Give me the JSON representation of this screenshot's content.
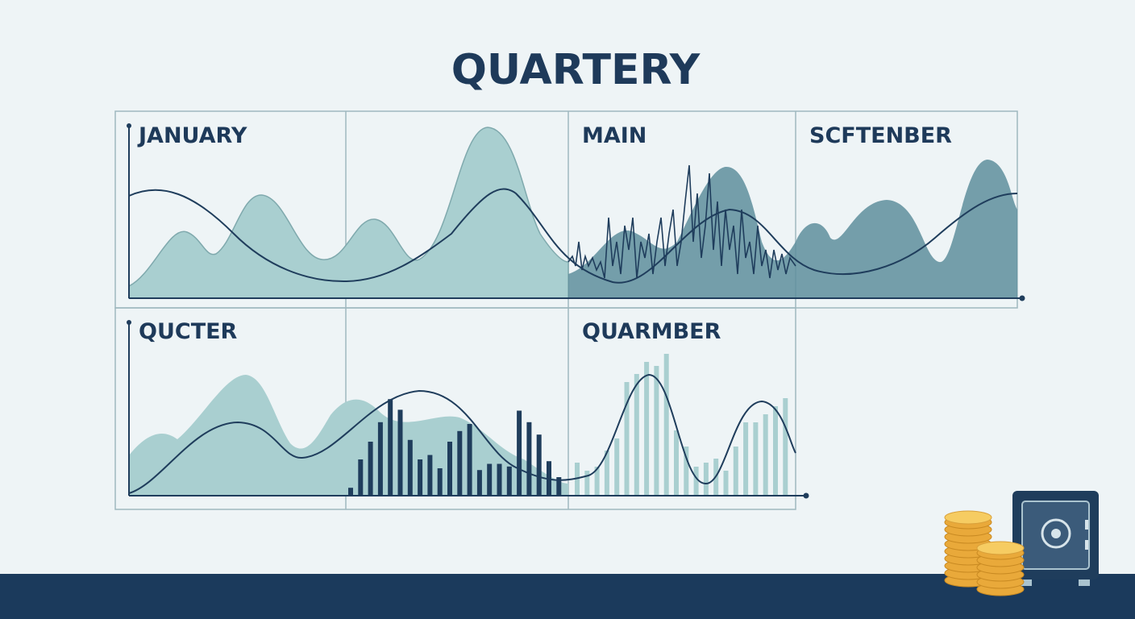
{
  "title": "QUARTERY",
  "panels": [
    {
      "label": "JANUARY"
    },
    {
      "label": "MAIN"
    },
    {
      "label": "SCFTENBER"
    },
    {
      "label": "QUCTER"
    },
    {
      "label": "QUARMBER"
    }
  ]
}
